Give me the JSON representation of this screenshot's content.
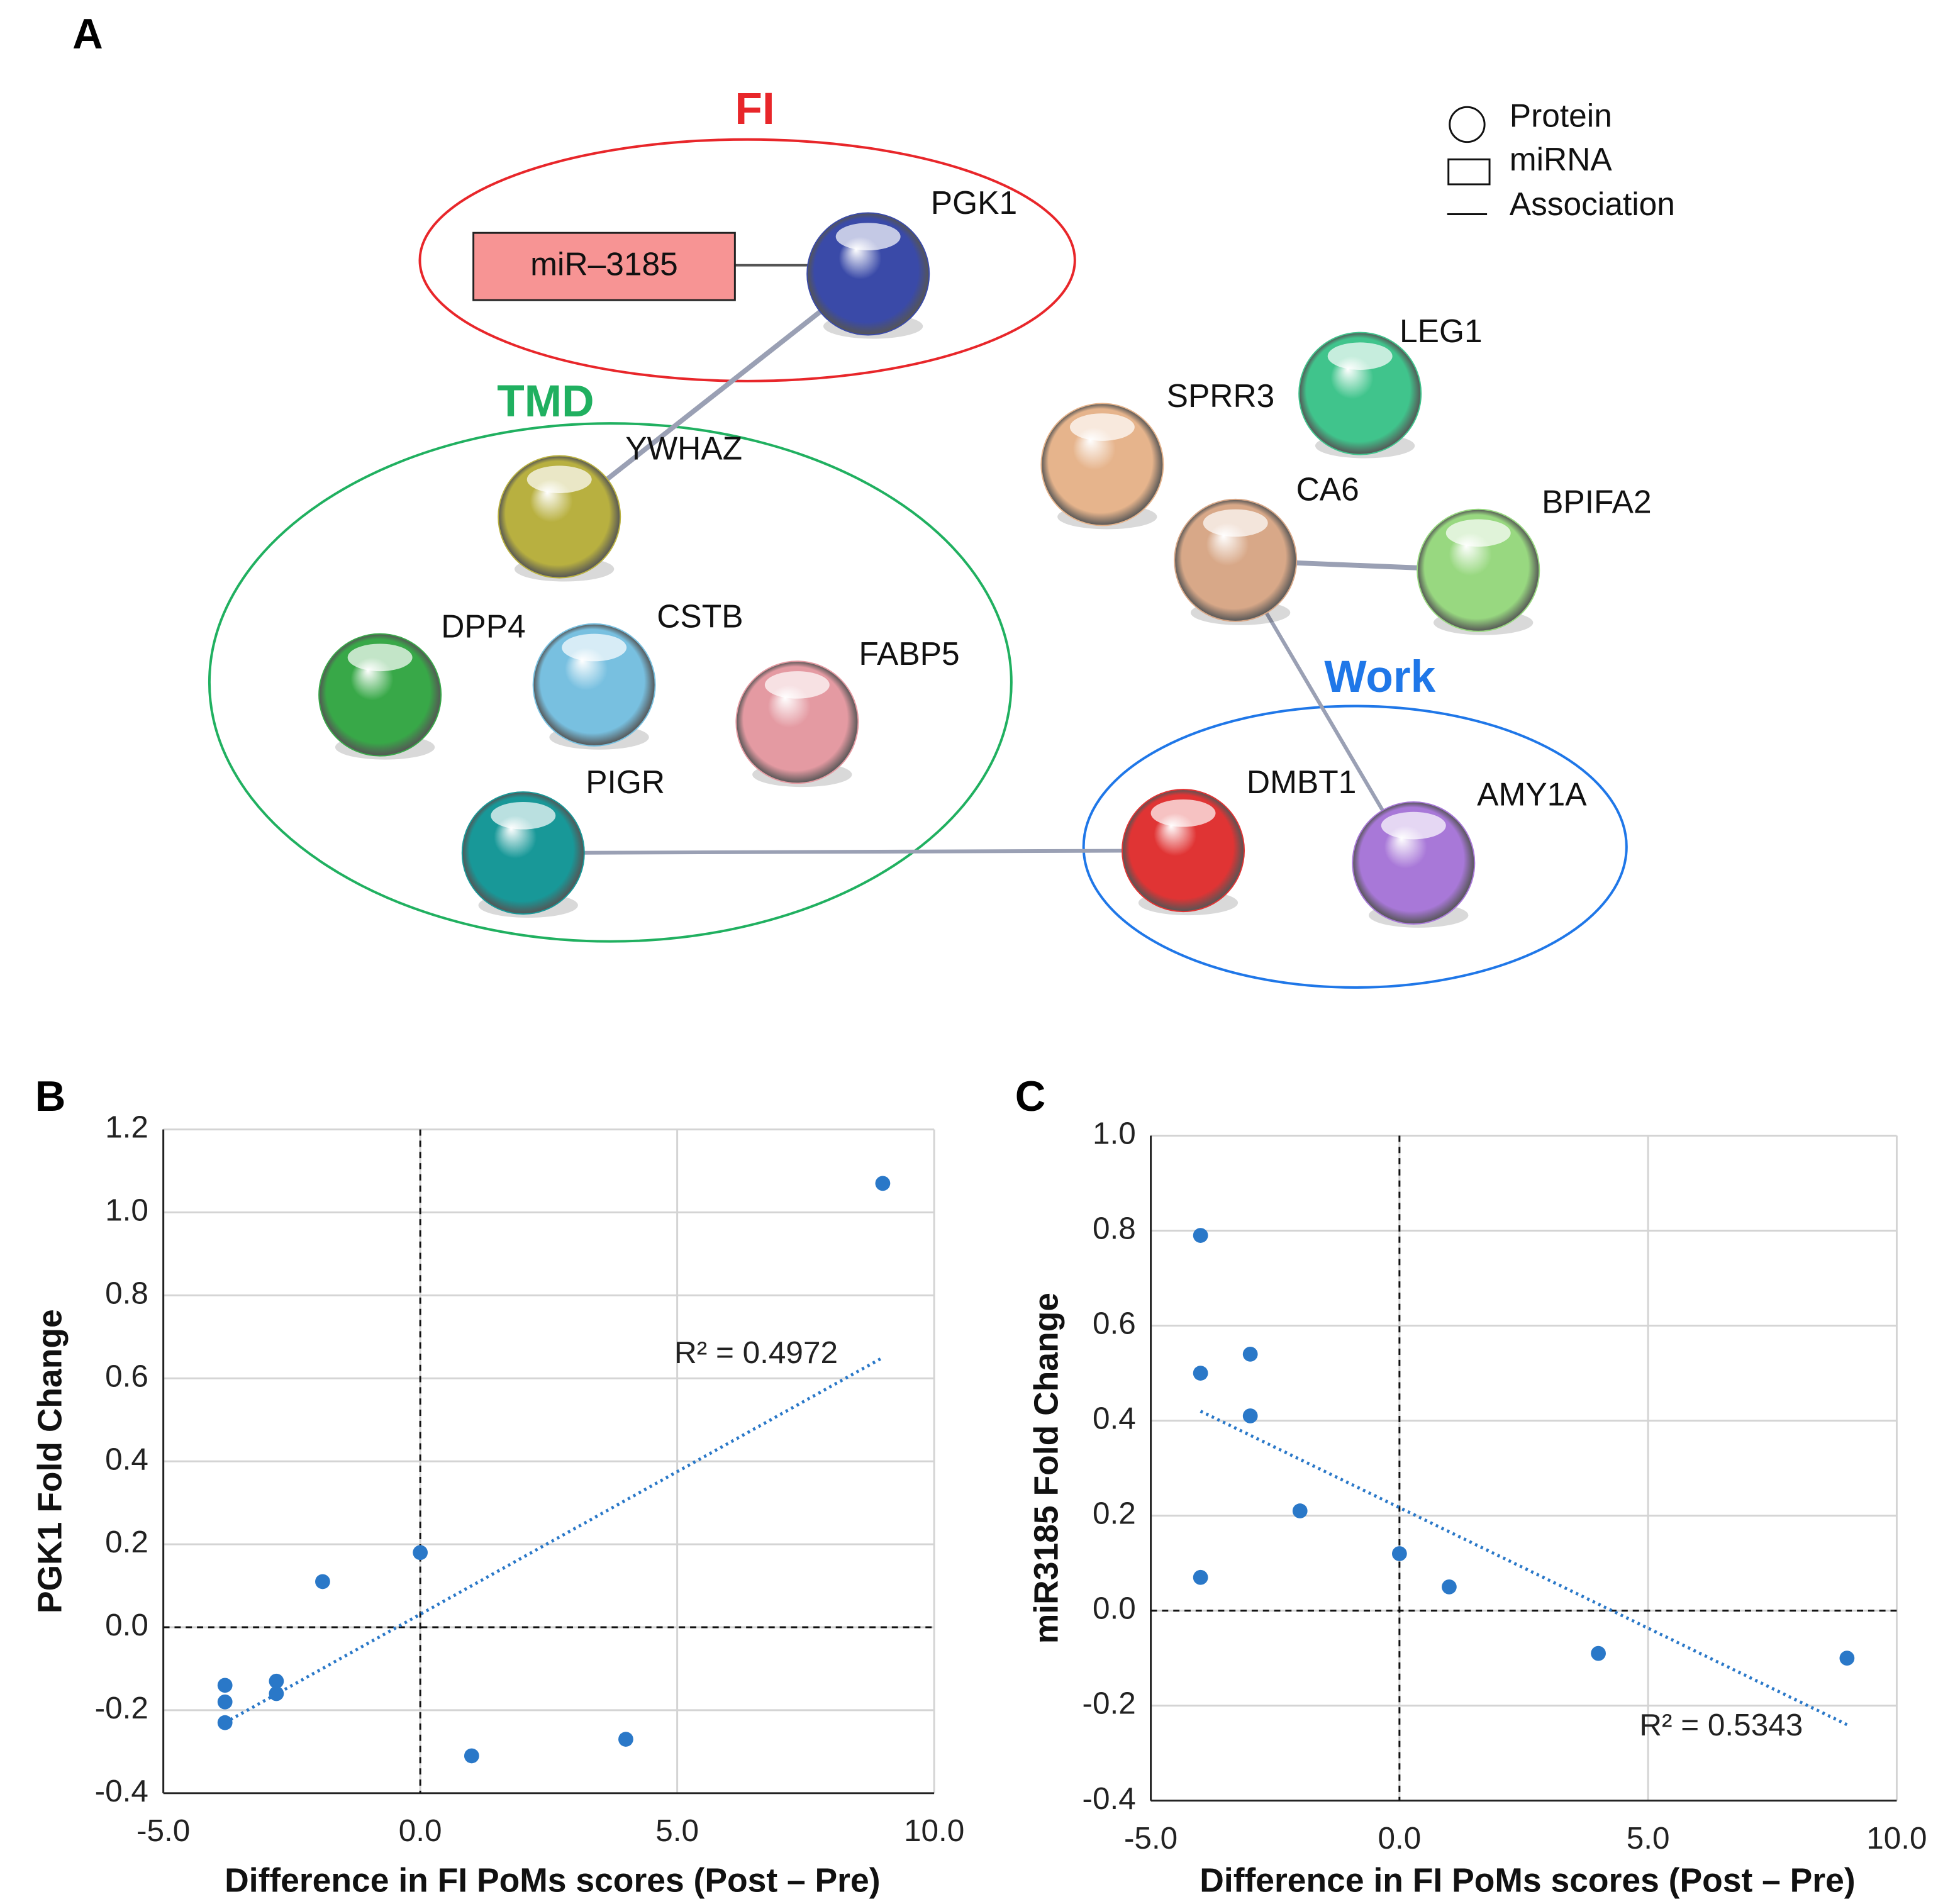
{
  "panel_labels": [
    "A",
    "B",
    "C"
  ],
  "network": {
    "legend": [
      "Protein",
      "miRNA",
      "Association"
    ],
    "mirna": {
      "label": "miR–3185",
      "color": "#f79494"
    },
    "groups": [
      {
        "label": "FI",
        "color": "#e8262a"
      },
      {
        "label": "TMD",
        "color": "#20b060"
      },
      {
        "label": "Work",
        "color": "#1f77e8"
      }
    ],
    "nodes": [
      {
        "label": "PGK1",
        "color": "#3a4aa8"
      },
      {
        "label": "YWHAZ",
        "color": "#b8b040"
      },
      {
        "label": "DPP4",
        "color": "#38a848"
      },
      {
        "label": "CSTB",
        "color": "#78c0e0"
      },
      {
        "label": "FABP5",
        "color": "#e49aa2"
      },
      {
        "label": "PIGR",
        "color": "#189898"
      },
      {
        "label": "SPRR3",
        "color": "#e6b48c"
      },
      {
        "label": "LEG1",
        "color": "#40c48c"
      },
      {
        "label": "CA6",
        "color": "#d8a888"
      },
      {
        "label": "BPIFA2",
        "color": "#98d880"
      },
      {
        "label": "DMBT1",
        "color": "#e03434"
      },
      {
        "label": "AMY1A",
        "color": "#a878d8"
      }
    ]
  },
  "chart_data": [
    {
      "type": "scatter",
      "ylabel": "PGK1 Fold Change",
      "xlabel": "Difference in FI PoMs scores (Post – Pre)",
      "color": "#2a78c8",
      "x": [
        -3.8,
        -3.8,
        -3.8,
        -2.8,
        -2.8,
        -1.9,
        0,
        1,
        4,
        9
      ],
      "values": [
        -0.14,
        -0.18,
        -0.23,
        -0.13,
        -0.16,
        0.11,
        0.18,
        -0.31,
        -0.27,
        1.07
      ],
      "xlim": [
        -5,
        10
      ],
      "xticks": [
        {
          "value": -5,
          "label": "-5.0"
        },
        {
          "value": 0,
          "label": "0.0"
        },
        {
          "value": 5,
          "label": "5.0"
        },
        {
          "value": 10,
          "label": "10.0"
        }
      ],
      "ylim": [
        -0.4,
        1.2
      ],
      "yticks": [
        -0.4,
        -0.2,
        {
          "value": 0,
          "label": "0.0"
        },
        0.2,
        0.4,
        0.6,
        0.8,
        {
          "value": 1,
          "label": "1.0"
        },
        1.2
      ],
      "grid": true,
      "reference_lines": {
        "x": 0,
        "y": 0
      },
      "trendline": {
        "x": [
          -3.8,
          9
        ],
        "y": [
          -0.23,
          0.65
        ]
      },
      "annotation": "R² = 0.4972"
    },
    {
      "type": "scatter",
      "ylabel": "miR3185 Fold Change",
      "xlabel": "Difference in FI PoMs scores (Post – Pre)",
      "color": "#2a78c8",
      "x": [
        -4,
        -4,
        -3,
        -3,
        -4,
        -2,
        0,
        1,
        4,
        9
      ],
      "values": [
        0.79,
        0.5,
        0.54,
        0.41,
        0.07,
        0.21,
        0.12,
        0.05,
        -0.09,
        -0.1
      ],
      "xlim": [
        -5,
        10
      ],
      "xticks": [
        {
          "value": -5,
          "label": "-5.0"
        },
        {
          "value": 0,
          "label": "0.0"
        },
        {
          "value": 5,
          "label": "5.0"
        },
        {
          "value": 10,
          "label": "10.0"
        }
      ],
      "ylim": [
        -0.4,
        1
      ],
      "yticks": [
        -0.4,
        -0.2,
        {
          "value": 0,
          "label": "0.0"
        },
        0.2,
        0.4,
        0.6,
        0.8,
        {
          "value": 1,
          "label": "1.0"
        }
      ],
      "grid": true,
      "reference_lines": {
        "x": 0,
        "y": 0
      },
      "trendline": {
        "x": [
          -4,
          9
        ],
        "y": [
          0.42,
          -0.24
        ]
      },
      "annotation": "R² = 0.5343"
    }
  ]
}
